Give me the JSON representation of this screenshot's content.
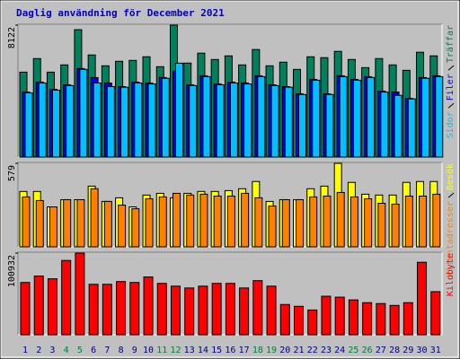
{
  "chart_data": [
    {
      "type": "bar",
      "title": "Daglig användning för December 2021",
      "ylim": [
        0,
        8122
      ],
      "yticks": [
        8122
      ],
      "series": [
        {
          "name": "Träffar",
          "color": "#00805c",
          "values": [
            5228,
            6063,
            5228,
            5674,
            7843,
            6285,
            5618,
            5896,
            5952,
            6174,
            5563,
            8122,
            5785,
            6397,
            6007,
            6230,
            5674,
            6620,
            5618,
            5841,
            5396,
            6174,
            6119,
            6508,
            6007,
            5507,
            6063,
            5674,
            5340,
            6452,
            6230
          ]
        },
        {
          "name": "Filer",
          "color": "#0000ff",
          "values": [
            4003,
            4615,
            4170,
            4448,
            5449,
            4893,
            4559,
            4337,
            4615,
            4559,
            4893,
            5282,
            4448,
            5004,
            4504,
            4615,
            4559,
            5004,
            4448,
            4337,
            3892,
            4782,
            3892,
            5004,
            4782,
            4948,
            4059,
            4003,
            3614,
            4893,
            5004
          ]
        },
        {
          "name": "Sidor",
          "color": "#00c0ff",
          "values": [
            3950,
            4560,
            4120,
            4400,
            5400,
            4560,
            4340,
            4300,
            4560,
            4500,
            4850,
            5780,
            4400,
            4950,
            4450,
            4560,
            4500,
            4950,
            4400,
            4300,
            3850,
            4730,
            3850,
            4950,
            4730,
            4900,
            4000,
            3800,
            3580,
            4850,
            4950
          ]
        }
      ]
    },
    {
      "type": "bar",
      "ylim": [
        0,
        579
      ],
      "yticks": [
        579
      ],
      "series": [
        {
          "name": "Besök",
          "color": "#ffff00",
          "values": [
            384,
            384,
            277,
            327,
            327,
            421,
            315,
            340,
            277,
            359,
            371,
            340,
            371,
            384,
            384,
            390,
            403,
            453,
            315,
            327,
            327,
            403,
            421,
            579,
            447,
            365,
            359,
            359,
            447,
            453,
            453
          ]
        },
        {
          "name": "Klientadresser",
          "color": "#ff8000",
          "values": [
            346,
            321,
            277,
            327,
            327,
            403,
            315,
            289,
            264,
            333,
            346,
            371,
            359,
            365,
            352,
            352,
            371,
            340,
            283,
            327,
            327,
            346,
            352,
            377,
            346,
            333,
            302,
            296,
            352,
            352,
            365
          ]
        }
      ]
    },
    {
      "type": "bar",
      "ylim": [
        0,
        100932
      ],
      "yticks": [
        100932
      ],
      "categories": [
        "1",
        "2",
        "3",
        "4",
        "5",
        "6",
        "7",
        "8",
        "9",
        "10",
        "11",
        "12",
        "13",
        "14",
        "15",
        "16",
        "17",
        "18",
        "19",
        "20",
        "21",
        "22",
        "23",
        "24",
        "25",
        "26",
        "27",
        "28",
        "29",
        "30",
        "31"
      ],
      "category_colors": [
        "#000080",
        "#000080",
        "#000080",
        "#008040",
        "#008040",
        "#000080",
        "#000080",
        "#000080",
        "#000080",
        "#000080",
        "#008040",
        "#008040",
        "#000080",
        "#000080",
        "#000080",
        "#000080",
        "#000080",
        "#008040",
        "#008040",
        "#000080",
        "#000080",
        "#000080",
        "#000080",
        "#000080",
        "#008040",
        "#008040",
        "#000080",
        "#000080",
        "#000080",
        "#000080",
        "#000080"
      ],
      "series": [
        {
          "name": "Kilobyte",
          "color": "#ff0000",
          "values": [
            64638,
            72576,
            69174,
            91854,
            100932,
            62370,
            62370,
            65772,
            64638,
            71442,
            63504,
            60102,
            57834,
            60102,
            63504,
            63504,
            57834,
            66906,
            60102,
            37422,
            35154,
            30618,
            47628,
            46494,
            43092,
            39690,
            38556,
            36288,
            39690,
            89586,
            53298
          ]
        }
      ]
    }
  ]
}
